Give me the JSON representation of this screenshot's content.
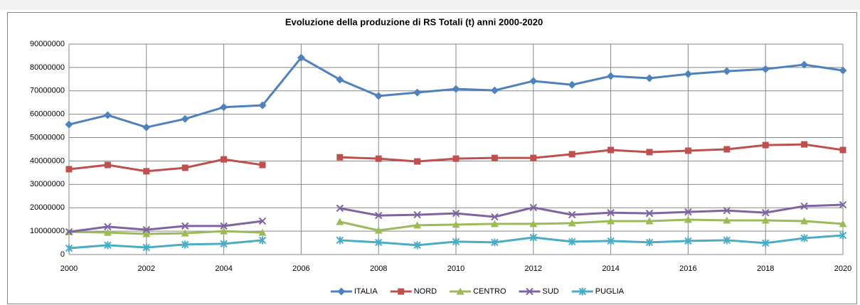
{
  "chart_data": {
    "type": "line",
    "title": "Evoluzione della produzione di RS Totali  (t) anni 2000-2020",
    "x": [
      2000,
      2001,
      2002,
      2003,
      2004,
      2005,
      2006,
      2007,
      2008,
      2009,
      2010,
      2011,
      2012,
      2013,
      2014,
      2015,
      2016,
      2017,
      2018,
      2019,
      2020
    ],
    "xlim": [
      2000,
      2020
    ],
    "xticks": [
      2000,
      2002,
      2004,
      2006,
      2008,
      2010,
      2012,
      2014,
      2016,
      2018,
      2020
    ],
    "ylim": [
      0,
      90000000
    ],
    "yticks": [
      0,
      10000000,
      20000000,
      30000000,
      40000000,
      50000000,
      60000000,
      70000000,
      80000000,
      90000000
    ],
    "grid": true,
    "legend": "bottom",
    "series": [
      {
        "name": "ITALIA",
        "color": "#4f81bd",
        "marker": "diamond",
        "values": [
          55600000,
          59600000,
          54400000,
          58000000,
          63000000,
          63800000,
          84200000,
          74800000,
          67800000,
          69300000,
          70800000,
          70200000,
          74200000,
          72600000,
          76300000,
          75400000,
          77200000,
          78400000,
          79300000,
          81200000,
          78700000
        ]
      },
      {
        "name": "NORD",
        "color": "#c0504d",
        "marker": "square",
        "values": [
          36500000,
          38300000,
          35600000,
          37100000,
          40700000,
          38300000,
          null,
          41600000,
          41000000,
          39800000,
          41000000,
          41300000,
          41300000,
          42900000,
          44700000,
          43800000,
          44400000,
          45000000,
          46800000,
          47100000,
          44700000
        ]
      },
      {
        "name": "CENTRO",
        "color": "#9bbb59",
        "marker": "triangle",
        "values": [
          9700000,
          9400000,
          8800000,
          9100000,
          10000000,
          9400000,
          null,
          14000000,
          10300000,
          12500000,
          12800000,
          13100000,
          13100000,
          13400000,
          14300000,
          14300000,
          14900000,
          14600000,
          14600000,
          14300000,
          13100000
        ]
      },
      {
        "name": "SUD",
        "color": "#8064a2",
        "marker": "x",
        "values": [
          9700000,
          11900000,
          10600000,
          12200000,
          12200000,
          14300000,
          null,
          19800000,
          16700000,
          17000000,
          17600000,
          16100000,
          20100000,
          17000000,
          17900000,
          17600000,
          18200000,
          18800000,
          17900000,
          20700000,
          21300000
        ]
      },
      {
        "name": "PUGLIA",
        "color": "#4bacc6",
        "marker": "star",
        "values": [
          2700000,
          4000000,
          3000000,
          4300000,
          4600000,
          6100000,
          null,
          6100000,
          5200000,
          4000000,
          5500000,
          5200000,
          7300000,
          5500000,
          5800000,
          5200000,
          5800000,
          6100000,
          4900000,
          7000000,
          8200000
        ]
      }
    ]
  }
}
